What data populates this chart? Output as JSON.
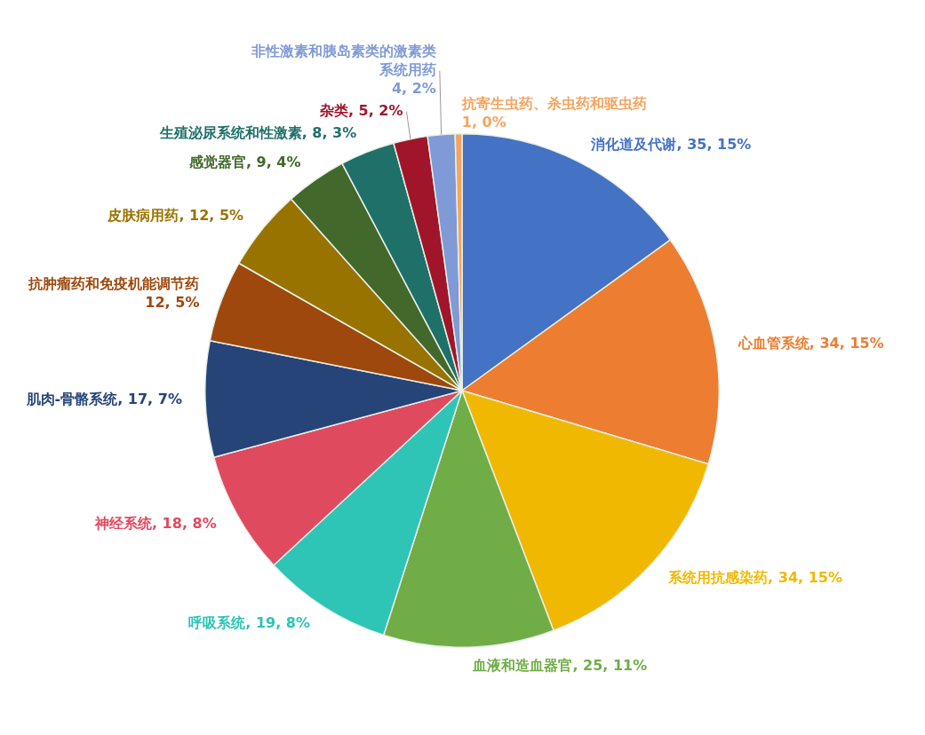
{
  "chart_data": {
    "type": "pie",
    "categories": [
      "消化道及代谢",
      "心血管系统",
      "系统用抗感染药",
      "血液和造血器官",
      "呼吸系统",
      "神经系统",
      "肌肉-骨骼系统",
      "抗肿瘤药和免疫机能调节药",
      "皮肤病用药",
      "感觉器官",
      "生殖泌尿系统和性激素",
      "杂类",
      "非性激素和胰岛素类的激素类系统用药",
      "抗寄生虫药、杀虫药和驱虫药"
    ],
    "values": [
      35,
      34,
      34,
      25,
      19,
      18,
      17,
      12,
      12,
      9,
      8,
      5,
      4,
      1
    ],
    "colors": [
      "#4472c4",
      "#ed7d31",
      "#f0b800",
      "#70ad47",
      "#2ec4b6",
      "#e04a5f",
      "#264478",
      "#9e480e",
      "#997300",
      "#43682b",
      "#1f7068",
      "#a0152a",
      "#7f9ad6",
      "#f4a460"
    ],
    "data_labels": true,
    "value_labels": [
      "35, 15%",
      "34, 15%",
      "34, 15%",
      "25, 11%",
      "19, 8%",
      "18, 8%",
      "17, 7%",
      "12, 5%",
      "12, 5%",
      "9, 4%",
      "8, 3%",
      "5, 2%",
      "4, 2%",
      "1, 0%"
    ],
    "legend": false
  }
}
